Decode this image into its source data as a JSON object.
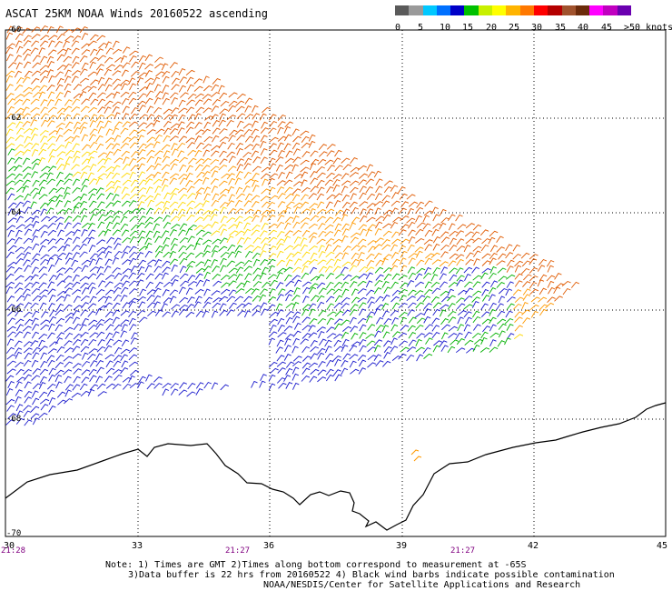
{
  "title": "ASCAT 25KM NOAA Winds 20160522 ascending",
  "colorbar": {
    "swatches": [
      "#5a5a5a",
      "#9a9a9a",
      "#00c8ff",
      "#0070ff",
      "#0000c8",
      "#00c000",
      "#c8f000",
      "#ffff00",
      "#ffb400",
      "#ff7800",
      "#ff0000",
      "#b40000",
      "#a0522d",
      "#6b2a0a",
      "#ff00ff",
      "#c000c0",
      "#6a00b0"
    ],
    "labels": [
      "0",
      "5",
      "10",
      "15",
      "20",
      "25",
      "30",
      "35",
      "40",
      "45",
      ">50 knots"
    ]
  },
  "axes": {
    "lat_labels": [
      "-60",
      "-62",
      "-64",
      "-66",
      "-68",
      "-70"
    ],
    "lon_labels": [
      "30",
      "33",
      "36",
      "39",
      "42",
      "45"
    ],
    "times": [
      "21:28",
      "21:27",
      "21:27"
    ]
  },
  "notes": {
    "line1": "Note: 1) Times are GMT 2)Times along bottom correspond to measurement at -65S",
    "line2": "3)Data buffer is 22 hrs from 20160522 4) Black wind barbs indicate possible contamination",
    "line3": "NOAA/NESDIS/Center for Satellite Applications and Research"
  },
  "colors": {
    "dark_orange": "#e05a00",
    "orange": "#ff9900",
    "yellow": "#ffd800",
    "green": "#00b000",
    "blue": "#1a1acc",
    "cyan": "#009ad0",
    "coastline": "#000000"
  }
}
